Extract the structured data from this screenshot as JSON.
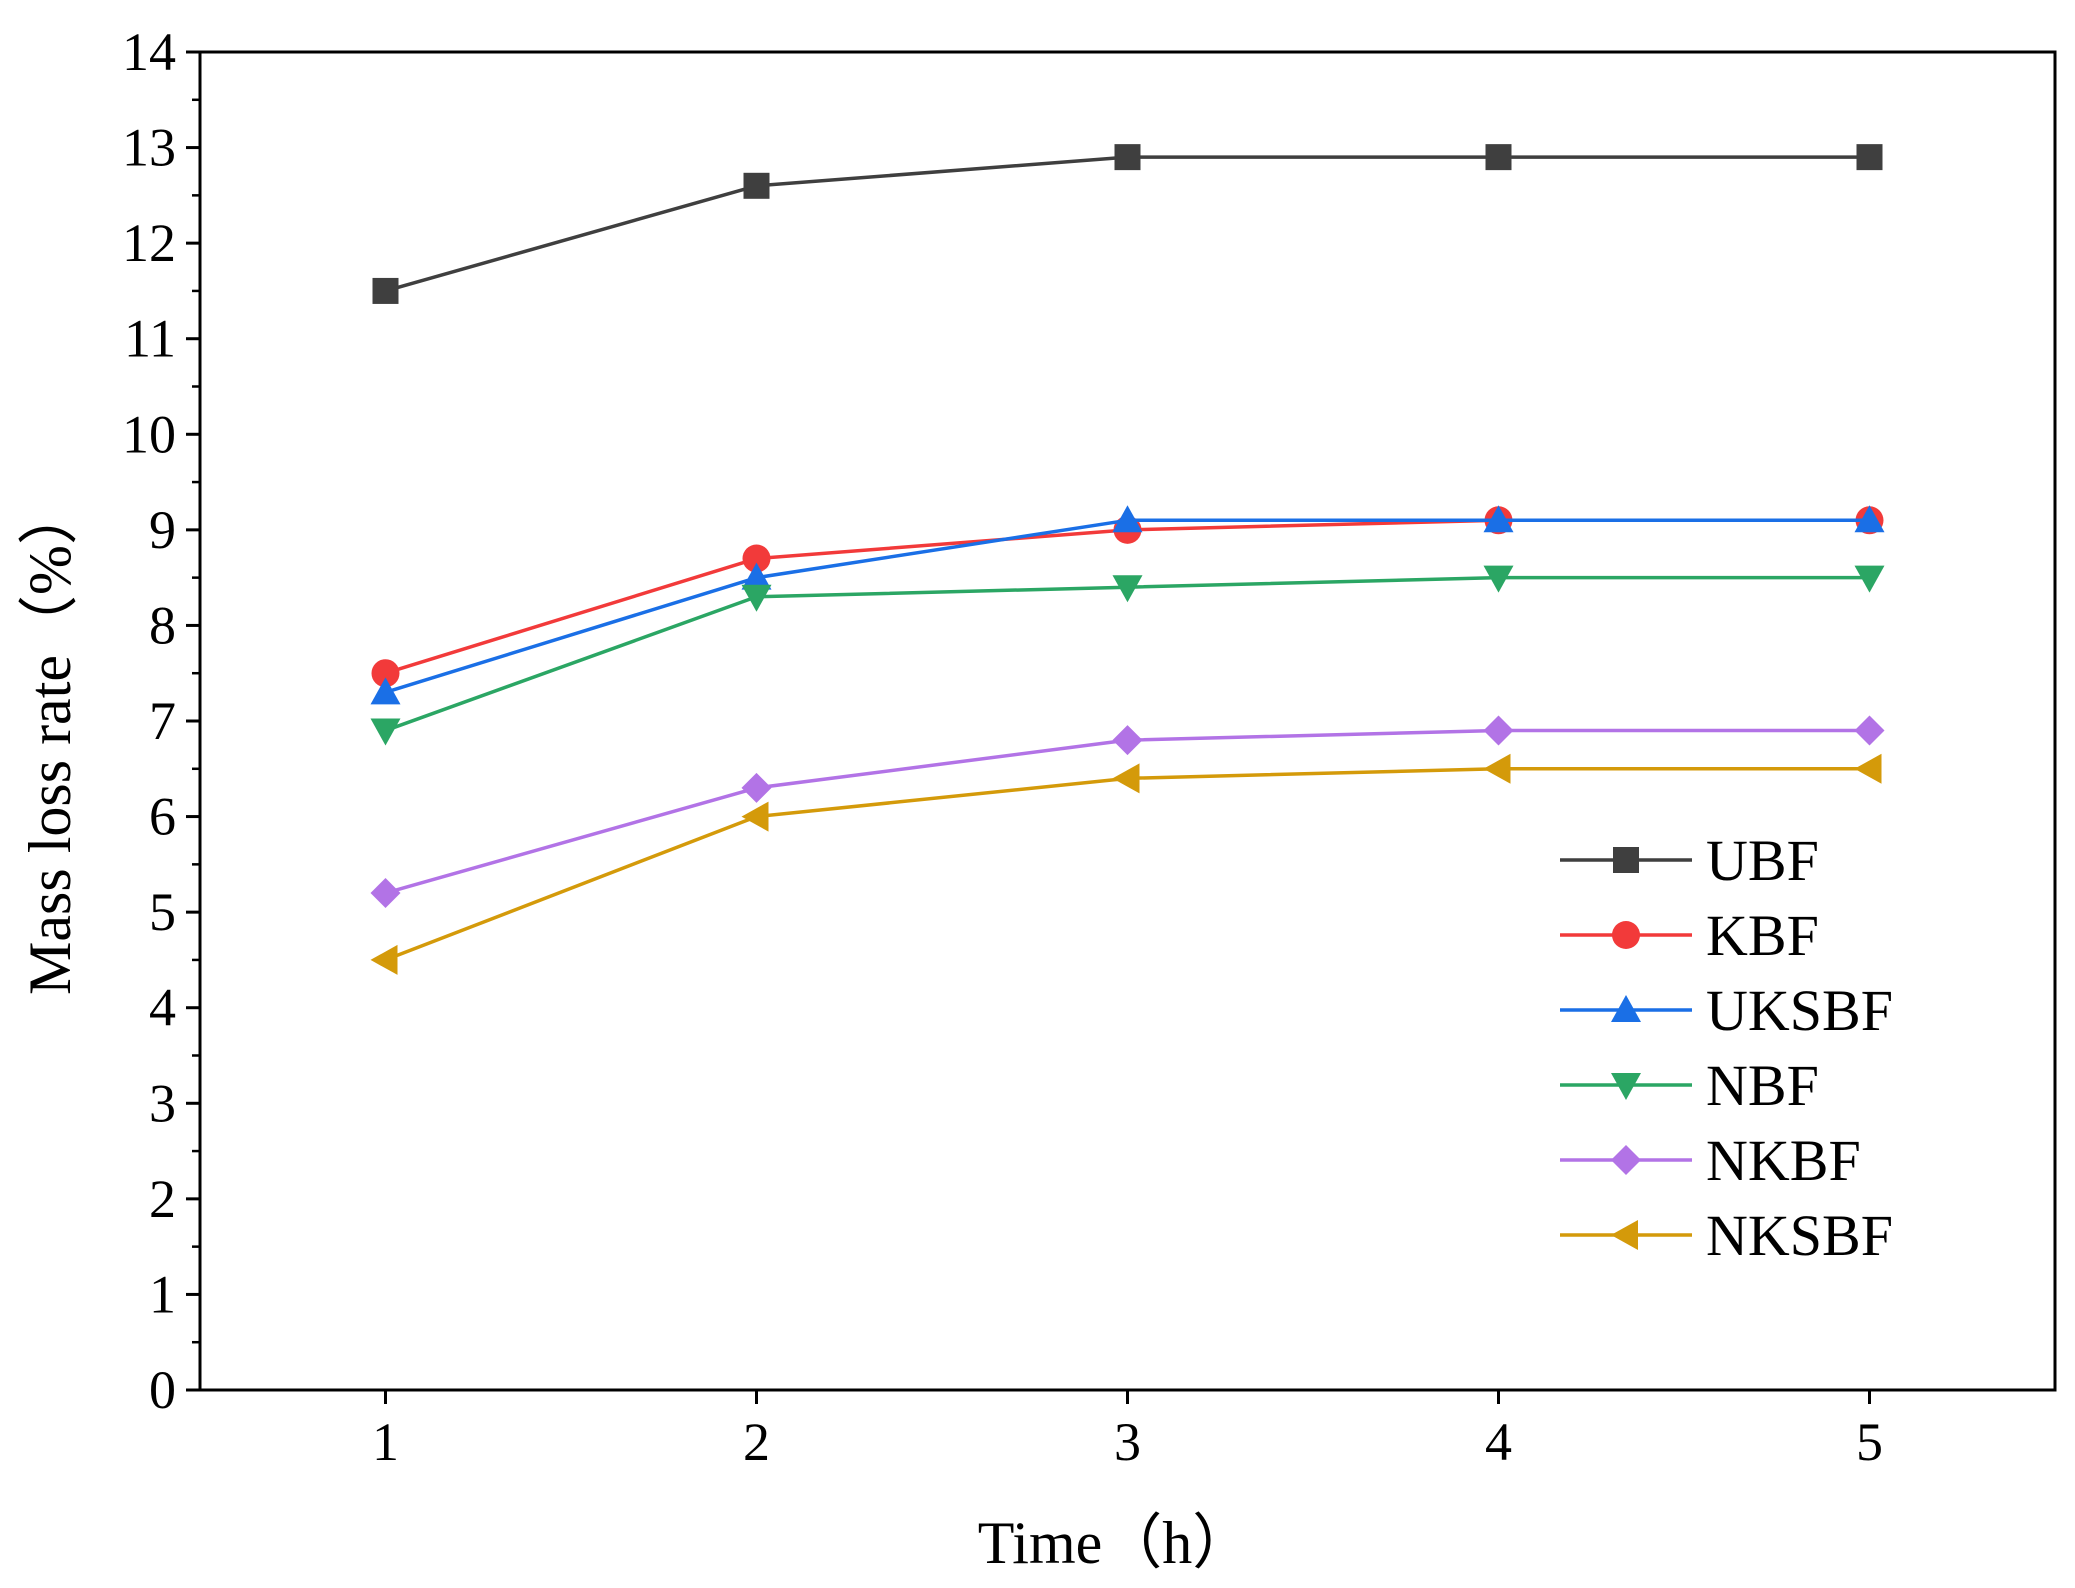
{
  "chart_data": {
    "type": "line",
    "title": "",
    "xlabel": "Time（h）",
    "ylabel": "Mass loss rate（%）",
    "x": [
      1,
      2,
      3,
      4,
      5
    ],
    "xlim": [
      0.5,
      5.5
    ],
    "ylim": [
      0,
      14
    ],
    "xticks": [
      1,
      2,
      3,
      4,
      5
    ],
    "yticks": [
      0,
      1,
      2,
      3,
      4,
      5,
      6,
      7,
      8,
      9,
      10,
      11,
      12,
      13,
      14
    ],
    "grid": false,
    "legend_position": "center-right",
    "series": [
      {
        "name": "UBF",
        "color": "#3f3f3f",
        "marker": "square",
        "values": [
          11.5,
          12.6,
          12.9,
          12.9,
          12.9
        ]
      },
      {
        "name": "KBF",
        "color": "#f23a3a",
        "marker": "circle",
        "values": [
          7.5,
          8.7,
          9.0,
          9.1,
          9.1
        ]
      },
      {
        "name": "UKSBF",
        "color": "#1a6fe6",
        "marker": "triangle-up",
        "values": [
          7.3,
          8.5,
          9.1,
          9.1,
          9.1
        ]
      },
      {
        "name": "NBF",
        "color": "#2ba664",
        "marker": "triangle-down",
        "values": [
          6.9,
          8.3,
          8.4,
          8.5,
          8.5
        ]
      },
      {
        "name": "NKBF",
        "color": "#b273e6",
        "marker": "diamond",
        "values": [
          5.2,
          6.3,
          6.8,
          6.9,
          6.9
        ]
      },
      {
        "name": "NKSBF",
        "color": "#d49a0a",
        "marker": "triangle-left",
        "values": [
          4.5,
          6.0,
          6.4,
          6.5,
          6.5
        ]
      }
    ]
  }
}
